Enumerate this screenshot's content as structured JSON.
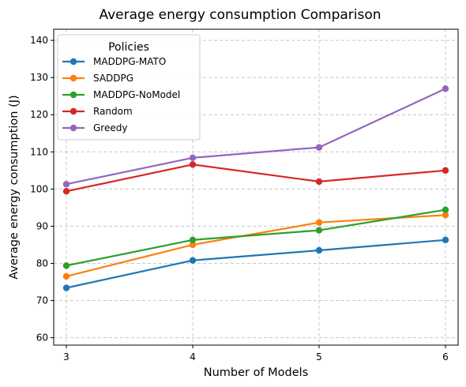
{
  "chart_data": {
    "type": "line",
    "title": "Average energy consumption Comparison",
    "xlabel": "Number of Models",
    "ylabel": "Average energy consumption (J)",
    "x": [
      3,
      4,
      5,
      6
    ],
    "xlim": [
      2.9,
      6.1
    ],
    "ylim": [
      58,
      143
    ],
    "yticks": [
      60,
      70,
      80,
      90,
      100,
      110,
      120,
      130,
      140
    ],
    "grid": true,
    "legend": {
      "title": "Policies",
      "placement": "top-left"
    },
    "series": [
      {
        "name": "MADDPG-MATO",
        "color": "#1f77b4",
        "values": [
          73.4,
          80.8,
          83.5,
          86.3
        ]
      },
      {
        "name": "SADDPG",
        "color": "#ff7f0e",
        "values": [
          76.5,
          85.0,
          91.0,
          93.0
        ]
      },
      {
        "name": "MADDPG-NoModel",
        "color": "#2ca02c",
        "values": [
          79.4,
          86.3,
          88.9,
          94.4
        ]
      },
      {
        "name": "Random",
        "color": "#d62728",
        "values": [
          99.4,
          106.6,
          102.0,
          105.0
        ]
      },
      {
        "name": "Greedy",
        "color": "#9467bd",
        "values": [
          101.3,
          108.4,
          111.2,
          127.0
        ]
      }
    ]
  }
}
